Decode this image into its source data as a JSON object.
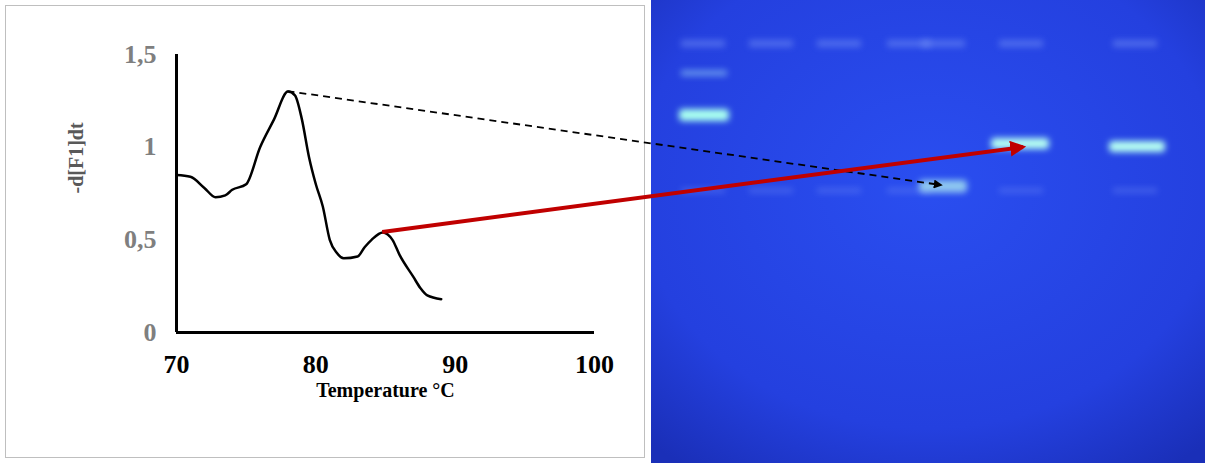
{
  "chart_data": {
    "type": "line",
    "xlabel": "Temperature °C",
    "ylabel": "-d[F1]dt",
    "x": [
      70,
      71,
      72,
      72.8,
      73.5,
      74,
      75,
      76,
      77,
      78,
      78.5,
      79,
      79.5,
      80,
      80.5,
      81,
      81.5,
      82,
      83,
      83.5,
      84,
      84.8,
      85.5,
      86,
      87,
      87.5,
      88,
      89
    ],
    "values": [
      0.85,
      0.84,
      0.78,
      0.73,
      0.74,
      0.77,
      0.8,
      1.0,
      1.15,
      1.3,
      1.28,
      1.15,
      0.95,
      0.8,
      0.68,
      0.5,
      0.43,
      0.4,
      0.41,
      0.46,
      0.5,
      0.54,
      0.5,
      0.42,
      0.3,
      0.24,
      0.2,
      0.18
    ],
    "color": "#000000",
    "xlim": [
      70,
      100
    ],
    "xticks": [
      70,
      80,
      90,
      100
    ],
    "ylim": [
      0,
      1.5
    ],
    "yticks": [
      0,
      {
        "value": 0.5,
        "label": "0,5"
      },
      1,
      {
        "value": 1.5,
        "label": "1,5"
      }
    ],
    "grid": false
  }
}
